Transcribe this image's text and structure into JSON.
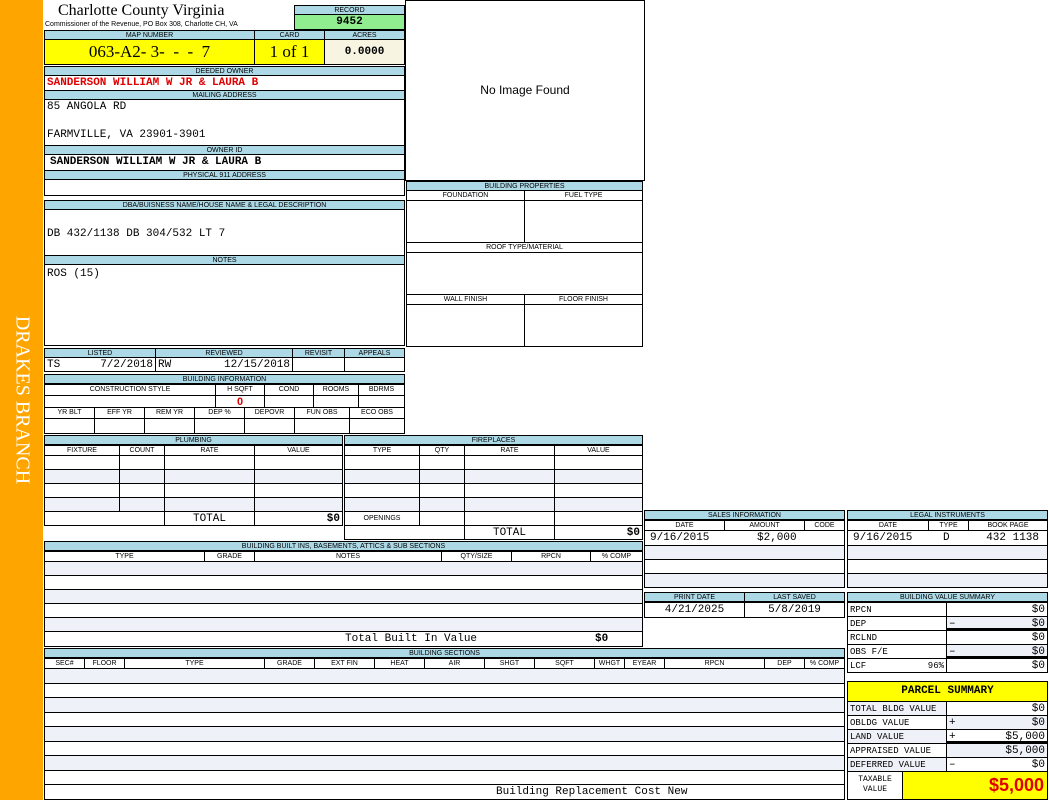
{
  "sidebar": {
    "district": "DRAKES BRANCH"
  },
  "header": {
    "title": "Charlotte County Virginia",
    "subtitle": "Commissioner of the Revenue, PO Box 308, Charlotte CH, VA",
    "record_label": "RECORD",
    "record": "9452"
  },
  "parcel": {
    "map_number_label": "MAP NUMBER",
    "map_number": "063-A2- 3-  -  -  7",
    "card_label": "CARD",
    "card": "1 of 1",
    "acres_label": "ACRES",
    "acres": "0.0000"
  },
  "owner": {
    "deeded_label": "DEEDED OWNER",
    "deeded": "SANDERSON WILLIAM W JR & LAURA B",
    "mailing_label": "MAILING ADDRESS",
    "mailing_line1": "85 ANGOLA RD",
    "mailing_line2": "FARMVILLE, VA 23901-3901",
    "owner_id_label": "OWNER ID",
    "owner_id": "SANDERSON WILLIAM W JR & LAURA B",
    "physical_label": "PHYSICAL 911 ADDRESS",
    "physical": ""
  },
  "image": {
    "placeholder": "No Image Found"
  },
  "legal": {
    "label": "DBA/BUISNESS NAME/HOUSE NAME & LEGAL DESCRIPTION",
    "value": "DB 432/1138 DB 304/532 LT 7",
    "notes_label": "NOTES",
    "notes": "ROS (15)"
  },
  "building_properties": {
    "label": "BUILDING PROPERTIES",
    "foundation": "FOUNDATION",
    "fuel": "FUEL TYPE",
    "roof": "ROOF TYPE/MATERIAL",
    "wall": "WALL FINISH",
    "floor": "FLOOR FINISH"
  },
  "review": {
    "listed_label": "LISTED",
    "reviewed_label": "REVIEWED",
    "revisit_label": "REVISIT",
    "appeals_label": "APPEALS",
    "listed_by": "TS",
    "listed": "7/2/2018",
    "reviewed_by": "RW",
    "reviewed": "12/15/2018"
  },
  "building_info": {
    "label": "BUILDING INFORMATION",
    "headers1": [
      "CONSTRUCTION STYLE",
      "H SQFT",
      "COND",
      "ROOMS",
      "BDRMS"
    ],
    "hsqft": "0",
    "headers2": [
      "YR BLT",
      "EFF YR",
      "REM YR",
      "DEP %",
      "DEPOVR",
      "FUN OBS",
      "ECO OBS"
    ]
  },
  "plumbing": {
    "label": "PLUMBING",
    "headers": [
      "FIXTURE",
      "COUNT",
      "RATE",
      "VALUE"
    ],
    "total_label": "TOTAL",
    "total": "$0"
  },
  "fireplaces": {
    "label": "FIREPLACES",
    "headers": [
      "TYPE",
      "QTY",
      "RATE",
      "VALUE"
    ],
    "openings_label": "OPENINGS",
    "total_label": "TOTAL",
    "total": "$0"
  },
  "built_ins": {
    "label": "BUILDING BUILT INS, BASEMENTS, ATTICS & SUB SECTIONS",
    "headers": [
      "TYPE",
      "GRADE",
      "NOTES",
      "QTY/SIZE",
      "RPCN",
      "% COMP"
    ],
    "total_label": "Total Built In Value",
    "total": "$0"
  },
  "sections": {
    "label": "BUILDING SECTIONS",
    "headers": [
      "SEC#",
      "FLOOR",
      "TYPE",
      "GRADE",
      "EXT FIN",
      "HEAT",
      "AIR",
      "SHGT",
      "SQFT",
      "WHGT",
      "EYEAR",
      "RPCN",
      "DEP",
      "% COMP"
    ],
    "footer": "Building Replacement Cost New"
  },
  "sales": {
    "label": "SALES INFORMATION",
    "headers": [
      "DATE",
      "AMOUNT",
      "CODE"
    ],
    "rows": [
      {
        "date": "9/16/2015",
        "amount": "$2,000",
        "code": ""
      }
    ]
  },
  "instruments": {
    "label": "LEGAL INSTRUMENTS",
    "headers": [
      "DATE",
      "TYPE",
      "BOOK PAGE"
    ],
    "rows": [
      {
        "date": "9/16/2015",
        "type": "D",
        "bookpage": "432 1138"
      }
    ]
  },
  "dates": {
    "print_label": "PRINT DATE",
    "print": "4/21/2025",
    "saved_label": "LAST SAVED",
    "saved": "5/8/2019"
  },
  "value_summary": {
    "label": "BUILDING VALUE SUMMARY",
    "rows": [
      {
        "label": "RPCN",
        "op": "",
        "value": "$0"
      },
      {
        "label": "DEP",
        "op": "–",
        "value": "$0"
      },
      {
        "label": "RCLND",
        "op": "",
        "value": "$0"
      },
      {
        "label": "OBS F/E",
        "op": "–",
        "value": "$0"
      },
      {
        "label": "LCF",
        "pct": "96%",
        "op": "",
        "value": "$0"
      }
    ]
  },
  "parcel_summary": {
    "label": "PARCEL SUMMARY",
    "rows": [
      {
        "label": "TOTAL BLDG VALUE",
        "op": "",
        "value": "$0"
      },
      {
        "label": "OBLDG VALUE",
        "op": "+",
        "value": "$0"
      },
      {
        "label": "LAND VALUE",
        "op": "+",
        "value": "$5,000"
      },
      {
        "label": "APPRAISED VALUE",
        "op": "",
        "value": "$5,000"
      },
      {
        "label": "DEFERRED VALUE",
        "op": "–",
        "value": "$0"
      }
    ],
    "taxable_label": "TAXABLE VALUE",
    "taxable": "$5,000"
  },
  "colors": {
    "label_bg": "#add8e6",
    "highlight": "#ffff00",
    "record_bg": "#90ee90",
    "owner_text": "#e00000",
    "sidebar": "#ffa500"
  }
}
